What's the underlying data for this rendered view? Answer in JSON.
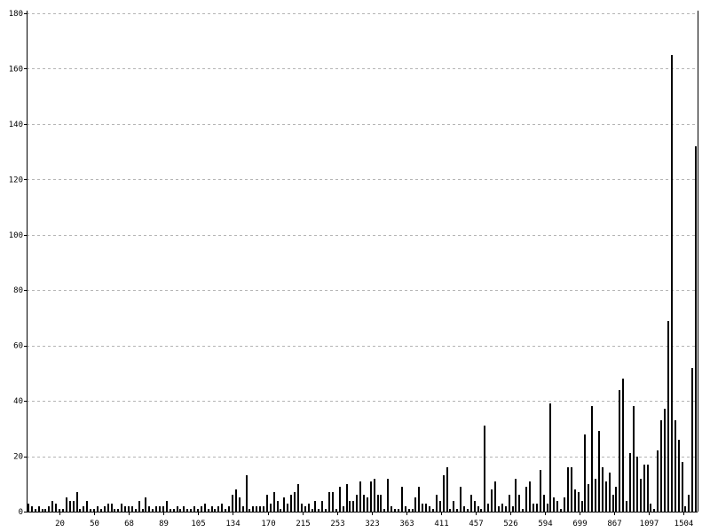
{
  "chart_data": {
    "type": "bar",
    "title": "",
    "xlabel": "",
    "ylabel": "",
    "ylim": [
      0,
      180
    ],
    "y_ticks": [
      0,
      20,
      40,
      60,
      80,
      100,
      120,
      140,
      160,
      180
    ],
    "grid": true,
    "x_tick_labels": [
      "20",
      "50",
      "68",
      "89",
      "105",
      "134",
      "170",
      "215",
      "253",
      "323",
      "363",
      "411",
      "457",
      "526",
      "594",
      "699",
      "867",
      "1097",
      "1504"
    ],
    "values": [
      3,
      2,
      1,
      2,
      1,
      1,
      2,
      4,
      3,
      1,
      1,
      5,
      4,
      4,
      7,
      1,
      2,
      4,
      1,
      1,
      2,
      1,
      2,
      3,
      3,
      1,
      1,
      3,
      2,
      2,
      2,
      1,
      4,
      1,
      5,
      2,
      1,
      2,
      2,
      2,
      4,
      1,
      1,
      2,
      1,
      2,
      1,
      1,
      2,
      1,
      2,
      3,
      1,
      2,
      1,
      2,
      3,
      1,
      2,
      6,
      8,
      5,
      2,
      13,
      1,
      2,
      2,
      2,
      2,
      6,
      3,
      7,
      4,
      1,
      5,
      3,
      6,
      7,
      10,
      3,
      2,
      3,
      1,
      4,
      1,
      4,
      1,
      7,
      7,
      1,
      9,
      2,
      10,
      4,
      4,
      6,
      11,
      6,
      5,
      11,
      12,
      6,
      6,
      1,
      12,
      2,
      1,
      1,
      9,
      2,
      1,
      1,
      5,
      9,
      3,
      3,
      2,
      1,
      6,
      4,
      13,
      16,
      1,
      4,
      1,
      9,
      2,
      1,
      6,
      4,
      2,
      1,
      31,
      3,
      8,
      11,
      2,
      3,
      2,
      6,
      2,
      12,
      6,
      1,
      9,
      11,
      3,
      3,
      15,
      6,
      3,
      39,
      5,
      4,
      1,
      5,
      16,
      16,
      8,
      7,
      4,
      28,
      10,
      38,
      12,
      29,
      16,
      11,
      14,
      6,
      9,
      44,
      48,
      4,
      21,
      38,
      20,
      12,
      17,
      17,
      3,
      1,
      22,
      33,
      37,
      69,
      165,
      33,
      26,
      18,
      2,
      6,
      52,
      132
    ]
  }
}
